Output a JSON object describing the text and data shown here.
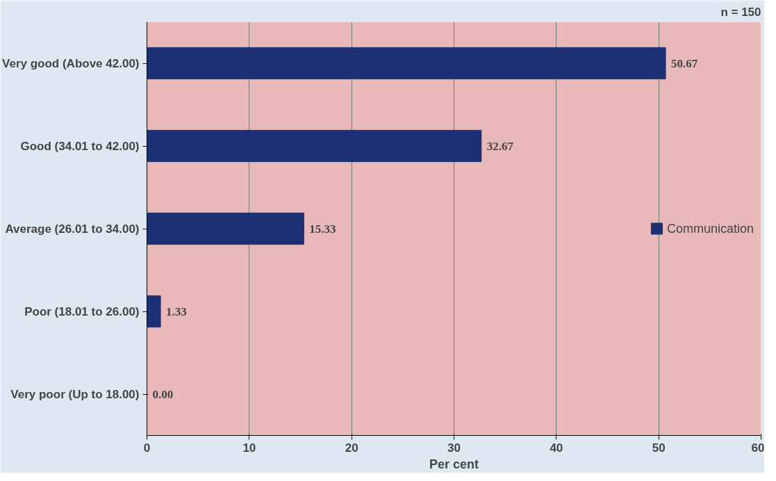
{
  "chart_data": {
    "type": "bar",
    "orientation": "horizontal",
    "categories": [
      "Very good (Above 42.00)",
      "Good (34.01 to 42.00)",
      "Average (26.01 to 34.00)",
      "Poor (18.01 to 26.00)",
      "Very poor (Up to 18.00)"
    ],
    "series": [
      {
        "name": "Communication",
        "color": "#1c2f73",
        "values": [
          50.67,
          32.67,
          15.33,
          1.33,
          0.0
        ],
        "value_labels": [
          "50.67",
          "32.67",
          "15.33",
          "1.33",
          "0.00"
        ]
      }
    ],
    "xlabel": "Per cent",
    "xlim": [
      0,
      60
    ],
    "xticks": [
      0,
      10,
      20,
      30,
      40,
      50,
      60
    ],
    "grid": "x",
    "legend": "right",
    "annotations": [
      "n = 150"
    ]
  }
}
